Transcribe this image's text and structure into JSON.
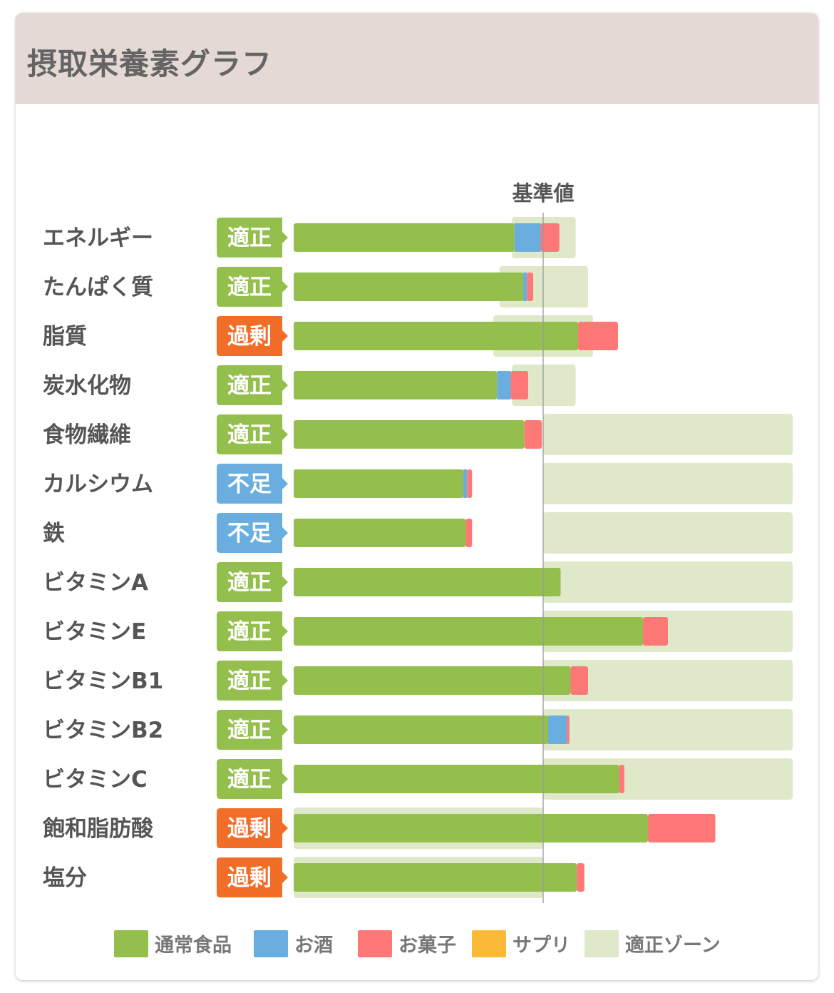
{
  "header": {
    "title": "摂取栄養素グラフ"
  },
  "colors": {
    "regular_food": "#94bf4c",
    "alcohol": "#6aaedf",
    "snacks": "#fd7877",
    "supplement": "#fbba35",
    "zone": "#dfe9c9",
    "badge_ok": "#94bf4c",
    "badge_over": "#f26d28",
    "badge_under": "#6aaedf"
  },
  "chart_data": {
    "type": "bar",
    "orientation": "horizontal",
    "stacked": true,
    "reference_label": "基準値",
    "reference_value": 100,
    "xlim": [
      0,
      200
    ],
    "legend": [
      {
        "key": "regular_food",
        "label": "通常食品"
      },
      {
        "key": "alcohol",
        "label": "お酒"
      },
      {
        "key": "snacks",
        "label": "お菓子"
      },
      {
        "key": "supplement",
        "label": "サプリ"
      },
      {
        "key": "zone",
        "label": "適正ゾーン"
      }
    ],
    "rows": [
      {
        "name": "エネルギー",
        "status": "適正",
        "status_type": "ok",
        "values": {
          "regular_food": 88.5,
          "alcohol": 10.5,
          "snacks": 7.5,
          "supplement": 0
        },
        "zone": [
          87.5,
          113
        ]
      },
      {
        "name": "たんぱく質",
        "status": "適正",
        "status_type": "ok",
        "values": {
          "regular_food": 92,
          "alcohol": 1.5,
          "snacks": 2.5,
          "supplement": 0
        },
        "zone": [
          82.5,
          118
        ]
      },
      {
        "name": "脂質",
        "status": "過剰",
        "status_type": "over",
        "values": {
          "regular_food": 114,
          "alcohol": 0,
          "snacks": 16,
          "supplement": 0
        },
        "zone": [
          80,
          120
        ]
      },
      {
        "name": "炭水化物",
        "status": "適正",
        "status_type": "ok",
        "values": {
          "regular_food": 81.5,
          "alcohol": 5.5,
          "snacks": 7,
          "supplement": 0
        },
        "zone": [
          87.5,
          113
        ]
      },
      {
        "name": "食物繊維",
        "status": "適正",
        "status_type": "ok",
        "values": {
          "regular_food": 92.5,
          "alcohol": 0,
          "snacks": 7,
          "supplement": 0
        },
        "zone": [
          100,
          200
        ]
      },
      {
        "name": "カルシウム",
        "status": "不足",
        "status_type": "under",
        "values": {
          "regular_food": 68,
          "alcohol": 1.5,
          "snacks": 2,
          "supplement": 0
        },
        "zone": [
          100,
          200
        ]
      },
      {
        "name": "鉄",
        "status": "不足",
        "status_type": "under",
        "values": {
          "regular_food": 69,
          "alcohol": 0,
          "snacks": 2.5,
          "supplement": 0
        },
        "zone": [
          100,
          200
        ]
      },
      {
        "name": "ビタミンA",
        "status": "適正",
        "status_type": "ok",
        "values": {
          "regular_food": 107,
          "alcohol": 0,
          "snacks": 0,
          "supplement": 0
        },
        "zone": [
          100,
          200
        ]
      },
      {
        "name": "ビタミンE",
        "status": "適正",
        "status_type": "ok",
        "values": {
          "regular_food": 140,
          "alcohol": 0,
          "snacks": 10,
          "supplement": 0
        },
        "zone": [
          100,
          200
        ]
      },
      {
        "name": "ビタミンB1",
        "status": "適正",
        "status_type": "ok",
        "values": {
          "regular_food": 111,
          "alcohol": 0,
          "snacks": 7,
          "supplement": 0
        },
        "zone": [
          100,
          200
        ]
      },
      {
        "name": "ビタミンB2",
        "status": "適正",
        "status_type": "ok",
        "values": {
          "regular_food": 102,
          "alcohol": 7.5,
          "snacks": 1,
          "supplement": 0
        },
        "zone": [
          100,
          200
        ]
      },
      {
        "name": "ビタミンC",
        "status": "適正",
        "status_type": "ok",
        "values": {
          "regular_food": 130.5,
          "alcohol": 0,
          "snacks": 2,
          "supplement": 0
        },
        "zone": [
          100,
          200
        ]
      },
      {
        "name": "飽和脂肪酸",
        "status": "過剰",
        "status_type": "over",
        "values": {
          "regular_food": 142,
          "alcohol": 0,
          "snacks": 27,
          "supplement": 0
        },
        "zone": [
          0,
          100
        ]
      },
      {
        "name": "塩分",
        "status": "過剰",
        "status_type": "over",
        "values": {
          "regular_food": 113.5,
          "alcohol": 0,
          "snacks": 3,
          "supplement": 0
        },
        "zone": [
          0,
          100
        ]
      }
    ]
  }
}
